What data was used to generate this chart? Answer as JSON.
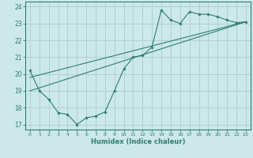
{
  "xlabel": "Humidex (Indice chaleur)",
  "xlim": [
    -0.5,
    23.5
  ],
  "ylim": [
    16.7,
    24.3
  ],
  "yticks": [
    17,
    18,
    19,
    20,
    21,
    22,
    23,
    24
  ],
  "xticks": [
    0,
    1,
    2,
    3,
    4,
    5,
    6,
    7,
    8,
    9,
    10,
    11,
    12,
    13,
    14,
    15,
    16,
    17,
    18,
    19,
    20,
    21,
    22,
    23
  ],
  "bg_color": "#cce8e8",
  "line_color": "#2e7d72",
  "grid_color": "#aacece",
  "line1_x": [
    0,
    1,
    2,
    3,
    4,
    5,
    6,
    7,
    8,
    9,
    10,
    11,
    12,
    13,
    14,
    15,
    16,
    17,
    18,
    19,
    20,
    21,
    22,
    23
  ],
  "line1_y": [
    20.2,
    19.0,
    18.5,
    17.7,
    17.6,
    17.0,
    17.4,
    17.5,
    17.75,
    19.0,
    20.3,
    21.0,
    21.1,
    21.6,
    23.8,
    23.2,
    23.0,
    23.7,
    23.55,
    23.55,
    23.4,
    23.2,
    23.05,
    23.1
  ],
  "line2_x": [
    0,
    23
  ],
  "line2_y": [
    19.0,
    23.1
  ],
  "line3_x": [
    0,
    23
  ],
  "line3_y": [
    19.8,
    23.1
  ]
}
